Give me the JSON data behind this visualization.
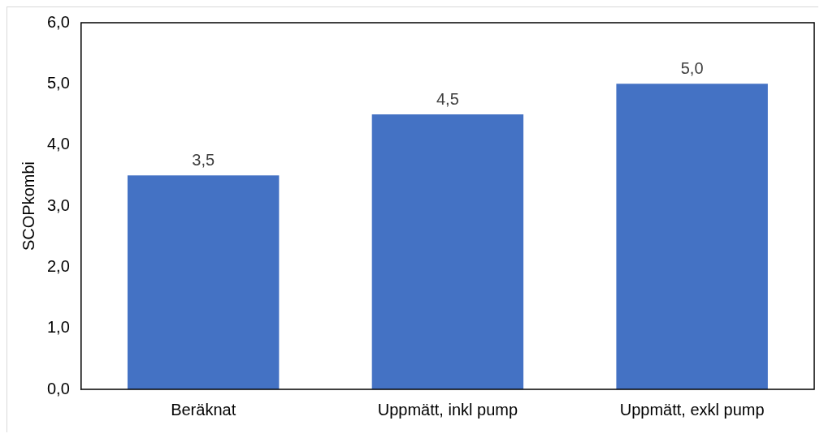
{
  "chart_data": {
    "type": "bar",
    "ylabel": "SCOPkombi",
    "categories": [
      "Beräknat",
      "Uppmätt, inkl pump",
      "Uppmätt, exkl pump"
    ],
    "values": [
      3.5,
      4.5,
      5.0
    ],
    "value_labels": [
      "3,5",
      "4,5",
      "5,0"
    ],
    "color": "#4472c4",
    "ylim": [
      0,
      6
    ],
    "yticks": [
      {
        "value": 0,
        "label": "0,0"
      },
      {
        "value": 1,
        "label": "1,0"
      },
      {
        "value": 2,
        "label": "2,0"
      },
      {
        "value": 3,
        "label": "3,0"
      },
      {
        "value": 4,
        "label": "4,0"
      },
      {
        "value": 5,
        "label": "5,0"
      },
      {
        "value": 6,
        "label": "6,0"
      }
    ],
    "grid": false,
    "legend": false
  }
}
